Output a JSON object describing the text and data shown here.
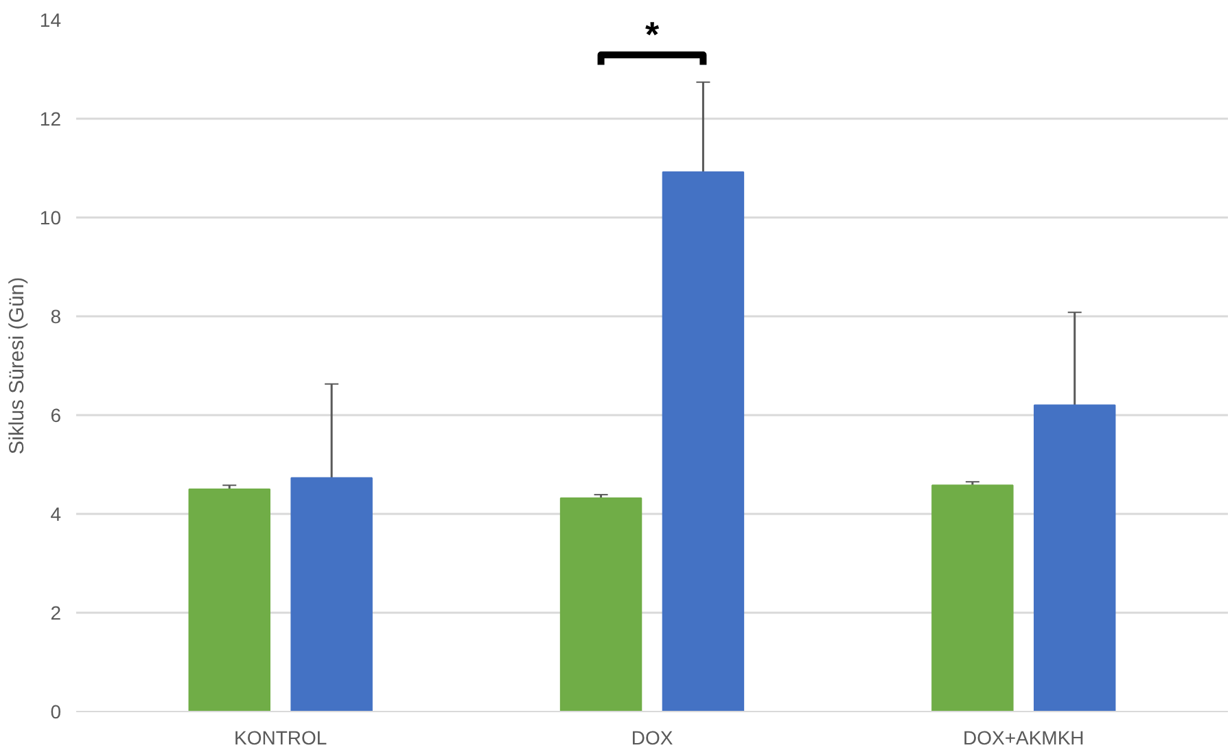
{
  "chart_data": {
    "type": "bar",
    "ylabel": "Siklus Süresi (Gün)",
    "categories": [
      "KONTROL",
      "DOX",
      "DOX+AKMKH"
    ],
    "series": [
      {
        "color": "#70ad47",
        "values": [
          4.5,
          4.32,
          4.58
        ],
        "errors": [
          0.08,
          0.07,
          0.07
        ]
      },
      {
        "color": "#4472c4",
        "values": [
          4.73,
          10.92,
          6.2
        ],
        "errors": [
          1.9,
          1.82,
          1.88
        ]
      }
    ],
    "ylim": [
      0,
      14
    ],
    "yticks": [
      0,
      2,
      4,
      6,
      8,
      10,
      12,
      14
    ],
    "grid": "y",
    "annotations": [
      "*"
    ]
  }
}
